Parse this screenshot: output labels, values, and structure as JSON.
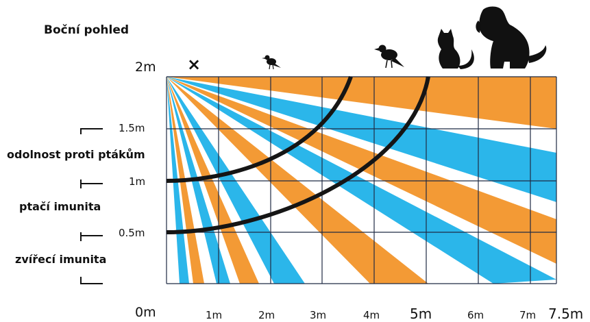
{
  "title": "Boční pohled",
  "zones": {
    "bird_resistance": "odolnost proti ptákům",
    "bird_immunity": "ptačí imunita",
    "pet_immunity": "zvířecí imunita"
  },
  "height_labels": {
    "h2": "2m",
    "h15": "1.5m",
    "h1": "1m",
    "h05": "0.5m",
    "h0": "0m"
  },
  "distance_labels": [
    "1m",
    "2m",
    "3m",
    "4m",
    "5m",
    "6m",
    "7m",
    "7.5m"
  ],
  "no_detection_mark": "×",
  "icons": [
    "small-bird-icon",
    "large-bird-icon",
    "cat-icon",
    "dog-icon"
  ],
  "colors": {
    "orange": "#f39a35",
    "blue": "#2bb6ea",
    "grid": "#1f2a44",
    "curve": "#151515"
  }
}
